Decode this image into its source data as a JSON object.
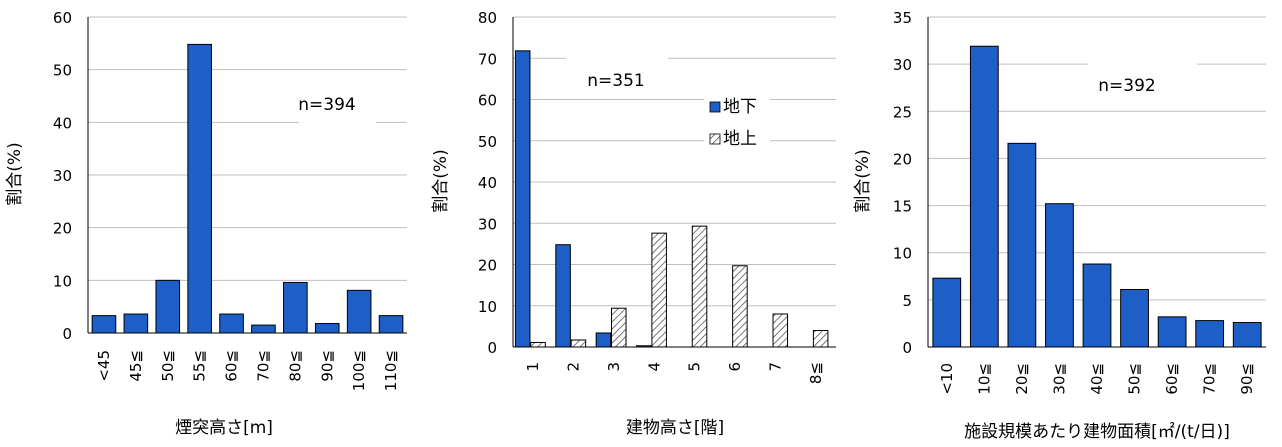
{
  "colors": {
    "bar_fill": "#1d5fc7",
    "bar_stroke": "#000000",
    "grid": "#bfbfbf",
    "axis": "#000000"
  },
  "chart_data": [
    {
      "type": "bar",
      "title": "",
      "xlabel": "煙突高さ[m]",
      "ylabel": "割合(%)",
      "ylim": [
        0,
        60
      ],
      "yticks": [
        0,
        10,
        20,
        30,
        40,
        50,
        60
      ],
      "grid": true,
      "annotation": "n=394",
      "categories": [
        "<45",
        "45≦",
        "50≦",
        "55≦",
        "60≦",
        "70≦",
        "80≦",
        "90≦",
        "100≦",
        "110≦"
      ],
      "series": [
        {
          "values": [
            3.3,
            3.6,
            10.0,
            54.8,
            3.6,
            1.5,
            9.6,
            1.8,
            8.1,
            3.3
          ]
        }
      ]
    },
    {
      "type": "bar",
      "title": "",
      "xlabel": "建物高さ[階]",
      "ylabel": "割合(%)",
      "ylim": [
        0,
        80
      ],
      "yticks": [
        0,
        10,
        20,
        30,
        40,
        50,
        60,
        70,
        80
      ],
      "grid": true,
      "annotation": "n=351",
      "legend_position": "top-right",
      "categories": [
        "1",
        "2",
        "3",
        "4",
        "5",
        "6",
        "7",
        "8≦"
      ],
      "series": [
        {
          "name": "地下",
          "values": [
            71.8,
            24.8,
            3.4,
            0.3,
            0,
            0,
            0,
            0
          ]
        },
        {
          "name": "地上",
          "values": [
            1.1,
            1.7,
            9.4,
            27.6,
            29.3,
            19.7,
            8.0,
            4.0
          ]
        }
      ]
    },
    {
      "type": "bar",
      "title": "",
      "xlabel": "施設規模あたり建物面積[㎡/(t/日)]",
      "ylabel": "割合(%)",
      "ylim": [
        0,
        35
      ],
      "yticks": [
        0,
        5,
        10,
        15,
        20,
        25,
        30,
        35
      ],
      "grid": true,
      "annotation": "n=392",
      "categories": [
        "<10",
        "10≦",
        "20≦",
        "30≦",
        "40≦",
        "50≦",
        "60≦",
        "70≦",
        "90≦"
      ],
      "series": [
        {
          "values": [
            7.3,
            31.9,
            21.6,
            15.2,
            8.8,
            6.1,
            3.2,
            2.8,
            2.6
          ]
        }
      ]
    }
  ]
}
